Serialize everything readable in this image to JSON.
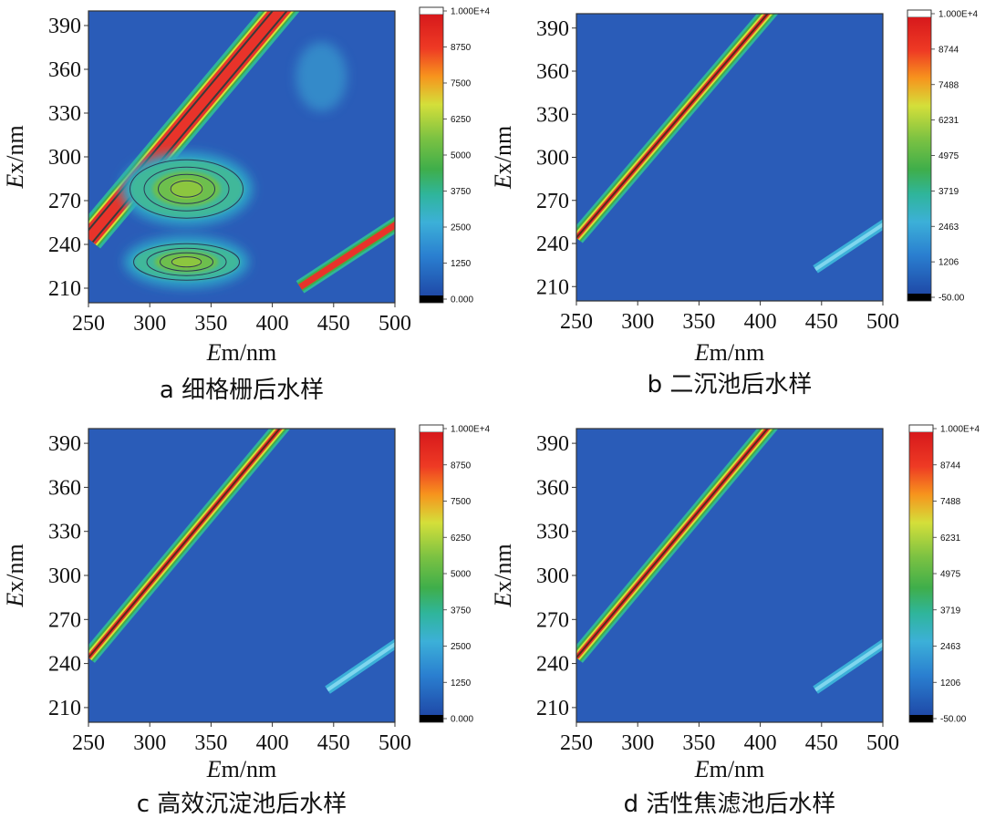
{
  "chart_data": [
    {
      "type": "heatmap",
      "caption": "a 细格栅后水样",
      "xlabel_italic": "E",
      "xlabel_rest": "m/nm",
      "ylabel_italic": "E",
      "ylabel_rest": "x/nm",
      "xlim": [
        250,
        500
      ],
      "ylim": [
        200,
        400
      ],
      "xticks": [
        "250",
        "300",
        "350",
        "400",
        "450",
        "500"
      ],
      "yticks": [
        "210",
        "240",
        "270",
        "300",
        "330",
        "360",
        "390"
      ],
      "colorbar": [
        "1.000E+4",
        "8750",
        "7500",
        "6250",
        "5000",
        "3750",
        "2500",
        "1250",
        "0.000"
      ],
      "peaks": [
        {
          "em": 330,
          "ex": 278,
          "intensity": 5600
        },
        {
          "em": 330,
          "ex": 228,
          "intensity": 4500
        },
        {
          "em": 440,
          "ex": 355,
          "intensity": 2200
        }
      ]
    },
    {
      "type": "heatmap",
      "caption": "b 二沉池后水样",
      "xlabel_italic": "E",
      "xlabel_rest": "m/nm",
      "ylabel_italic": "E",
      "ylabel_rest": "x/nm",
      "xlim": [
        250,
        500
      ],
      "ylim": [
        200,
        400
      ],
      "xticks": [
        "250",
        "300",
        "350",
        "400",
        "450",
        "500"
      ],
      "yticks": [
        "210",
        "240",
        "270",
        "300",
        "330",
        "360",
        "390"
      ],
      "colorbar": [
        "1.000E+4",
        "8744",
        "7488",
        "6231",
        "4975",
        "3719",
        "2463",
        "1206",
        "-50.00"
      ],
      "peaks": []
    },
    {
      "type": "heatmap",
      "caption": "c 高效沉淀池后水样",
      "xlabel_italic": "E",
      "xlabel_rest": "m/nm",
      "ylabel_italic": "E",
      "ylabel_rest": "x/nm",
      "xlim": [
        250,
        500
      ],
      "ylim": [
        200,
        400
      ],
      "xticks": [
        "250",
        "300",
        "350",
        "400",
        "450",
        "500"
      ],
      "yticks": [
        "210",
        "240",
        "270",
        "300",
        "330",
        "360",
        "390"
      ],
      "colorbar": [
        "1.000E+4",
        "8750",
        "7500",
        "6250",
        "5000",
        "3750",
        "2500",
        "1250",
        "0.000"
      ],
      "peaks": []
    },
    {
      "type": "heatmap",
      "caption": "d 活性焦滤池后水样",
      "xlabel_italic": "E",
      "xlabel_rest": "m/nm",
      "ylabel_italic": "E",
      "ylabel_rest": "x/nm",
      "xlim": [
        250,
        500
      ],
      "ylim": [
        200,
        400
      ],
      "xticks": [
        "250",
        "300",
        "350",
        "400",
        "450",
        "500"
      ],
      "yticks": [
        "210",
        "240",
        "270",
        "300",
        "330",
        "360",
        "390"
      ],
      "colorbar": [
        "1.000E+4",
        "8744",
        "7488",
        "6231",
        "4975",
        "3719",
        "2463",
        "1206",
        "-50.00"
      ],
      "peaks": []
    }
  ],
  "colors": {
    "background_blue": "#2a5cb8",
    "ridge_red": "#e8332a",
    "ridge_green": "#3fae4a",
    "peak_green": "#7cc242",
    "peak_cyan": "#3cb0d8"
  }
}
